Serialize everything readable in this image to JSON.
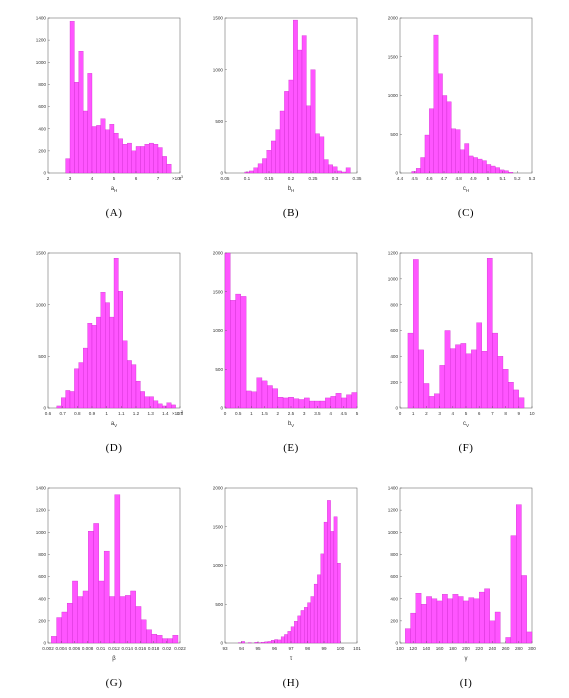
{
  "bar_color": "#ff55ff",
  "bar_edge_color": "#c21fc2",
  "chart_data": [
    {
      "type": "bar",
      "caption": "(A)",
      "xlabel": "a_H",
      "multiplier": "×10^-3",
      "xlim": [
        2,
        8
      ],
      "ylim": [
        0,
        1400
      ],
      "xticks": [
        "2",
        "3",
        "4",
        "5",
        "6",
        "7",
        "8"
      ],
      "yticks": [
        "0",
        "200",
        "400",
        "600",
        "800",
        "1000",
        "1200",
        "1400"
      ],
      "bin_edges": [
        2.8,
        3.0,
        3.2,
        3.4,
        3.6,
        3.8,
        4.0,
        4.2,
        4.4,
        4.6,
        4.8,
        5.0,
        5.2,
        5.4,
        5.6,
        5.8,
        6.0,
        6.2,
        6.4,
        6.6,
        6.8,
        7.0,
        7.2,
        7.4,
        7.6
      ],
      "values": [
        130,
        1370,
        820,
        1100,
        560,
        900,
        420,
        430,
        490,
        390,
        440,
        360,
        310,
        260,
        270,
        200,
        240,
        240,
        260,
        270,
        260,
        230,
        150,
        80
      ]
    },
    {
      "type": "bar",
      "caption": "(B)",
      "xlabel": "b_H",
      "xlim": [
        0.05,
        0.35
      ],
      "ylim": [
        0,
        1500
      ],
      "xticks": [
        "0.05",
        "0.1",
        "0.15",
        "0.2",
        "0.25",
        "0.3",
        "0.35"
      ],
      "yticks": [
        "0",
        "500",
        "1000",
        "1500"
      ],
      "bin_edges": [
        0.095,
        0.105,
        0.115,
        0.125,
        0.135,
        0.145,
        0.155,
        0.165,
        0.175,
        0.185,
        0.195,
        0.205,
        0.215,
        0.225,
        0.235,
        0.245,
        0.255,
        0.265,
        0.275,
        0.285,
        0.295,
        0.305,
        0.315,
        0.325,
        0.335
      ],
      "values": [
        10,
        20,
        50,
        90,
        140,
        220,
        310,
        420,
        600,
        790,
        900,
        1480,
        1190,
        1330,
        650,
        1000,
        380,
        350,
        130,
        80,
        60,
        20,
        10,
        50
      ]
    },
    {
      "type": "bar",
      "caption": "(C)",
      "xlabel": "c_H",
      "xlim": [
        4.4,
        5.3
      ],
      "ylim": [
        0,
        2000
      ],
      "xticks": [
        "4.4",
        "4.5",
        "4.6",
        "4.7",
        "4.8",
        "4.9",
        "5",
        "5.1",
        "5.2",
        "5.3"
      ],
      "yticks": [
        "0",
        "500",
        "1000",
        "1500",
        "2000"
      ],
      "bin_edges": [
        4.48,
        4.51,
        4.54,
        4.57,
        4.6,
        4.63,
        4.66,
        4.69,
        4.72,
        4.75,
        4.78,
        4.81,
        4.84,
        4.87,
        4.9,
        4.93,
        4.96,
        4.99,
        5.02,
        5.05,
        5.08,
        5.11,
        5.14,
        5.17
      ],
      "values": [
        20,
        60,
        200,
        490,
        830,
        1780,
        1280,
        1000,
        920,
        570,
        560,
        300,
        380,
        220,
        200,
        180,
        160,
        110,
        90,
        70,
        40,
        30,
        10
      ]
    },
    {
      "type": "bar",
      "caption": "(D)",
      "xlabel": "a_V",
      "multiplier": "×10^-3",
      "xlim": [
        0.6,
        1.5
      ],
      "ylim": [
        0,
        1500
      ],
      "xticks": [
        "0.6",
        "0.7",
        "0.8",
        "0.9",
        "1",
        "1.1",
        "1.2",
        "1.3",
        "1.4",
        "1.5"
      ],
      "yticks": [
        "0",
        "500",
        "1000",
        "1500"
      ],
      "bin_edges": [
        0.66,
        0.69,
        0.72,
        0.75,
        0.78,
        0.81,
        0.84,
        0.87,
        0.9,
        0.93,
        0.96,
        0.99,
        1.02,
        1.05,
        1.08,
        1.11,
        1.14,
        1.17,
        1.2,
        1.23,
        1.26,
        1.29,
        1.32,
        1.35,
        1.38,
        1.41,
        1.44,
        1.47
      ],
      "values": [
        20,
        100,
        170,
        160,
        380,
        440,
        580,
        820,
        800,
        880,
        1120,
        1020,
        880,
        1450,
        1130,
        650,
        460,
        420,
        260,
        160,
        110,
        110,
        70,
        40,
        20,
        50,
        30
      ]
    },
    {
      "type": "bar",
      "caption": "(E)",
      "xlabel": "b_V",
      "xlim": [
        0,
        5
      ],
      "ylim": [
        0,
        2000
      ],
      "xticks": [
        "0",
        "0.5",
        "1",
        "1.5",
        "2",
        "2.5",
        "3",
        "3.5",
        "4",
        "4.5",
        "5"
      ],
      "yticks": [
        "0",
        "500",
        "1000",
        "1500",
        "2000"
      ],
      "bin_edges": [
        0,
        0.2,
        0.4,
        0.6,
        0.8,
        1.0,
        1.2,
        1.4,
        1.6,
        1.8,
        2.0,
        2.2,
        2.4,
        2.6,
        2.8,
        3.0,
        3.2,
        3.4,
        3.6,
        3.8,
        4.0,
        4.2,
        4.4,
        4.6,
        4.8,
        5.0
      ],
      "values": [
        2050,
        1390,
        1470,
        1440,
        220,
        210,
        390,
        350,
        290,
        250,
        140,
        130,
        140,
        120,
        110,
        130,
        90,
        90,
        90,
        130,
        150,
        190,
        130,
        170,
        200
      ]
    },
    {
      "type": "bar",
      "caption": "(F)",
      "xlabel": "c_V",
      "xlim": [
        0,
        10
      ],
      "ylim": [
        0,
        1200
      ],
      "xticks": [
        "0",
        "1",
        "2",
        "3",
        "4",
        "5",
        "6",
        "7",
        "8",
        "9",
        "10"
      ],
      "yticks": [
        "0",
        "200",
        "400",
        "600",
        "800",
        "1000",
        "1200"
      ],
      "bin_edges": [
        0.6,
        1.0,
        1.4,
        1.8,
        2.2,
        2.6,
        3.0,
        3.4,
        3.8,
        4.2,
        4.6,
        5.0,
        5.4,
        5.8,
        6.2,
        6.6,
        7.0,
        7.4,
        7.8,
        8.2,
        8.6,
        9.0,
        9.4
      ],
      "values": [
        580,
        1150,
        450,
        190,
        90,
        110,
        330,
        600,
        460,
        490,
        500,
        420,
        450,
        660,
        440,
        1160,
        580,
        400,
        300,
        200,
        140,
        80
      ]
    },
    {
      "type": "bar",
      "caption": "(G)",
      "xlabel": "β",
      "xlim": [
        0.002,
        0.022
      ],
      "ylim": [
        0,
        1400
      ],
      "xticks": [
        "0.002",
        "0.004",
        "0.006",
        "0.008",
        "0.01",
        "0.012",
        "0.014",
        "0.016",
        "0.018",
        "0.02",
        "0.022"
      ],
      "yticks": [
        "0",
        "200",
        "400",
        "600",
        "800",
        "1000",
        "1200",
        "1400"
      ],
      "bin_edges": [
        0.0025,
        0.0033,
        0.0041,
        0.0049,
        0.0057,
        0.0065,
        0.0073,
        0.0081,
        0.0089,
        0.0097,
        0.0105,
        0.0113,
        0.0121,
        0.0129,
        0.0137,
        0.0145,
        0.0153,
        0.0161,
        0.0169,
        0.0177,
        0.0185,
        0.0193,
        0.0201,
        0.0209,
        0.0217
      ],
      "values": [
        60,
        230,
        280,
        360,
        560,
        420,
        470,
        1010,
        1080,
        560,
        830,
        420,
        1340,
        420,
        430,
        470,
        330,
        210,
        120,
        80,
        70,
        40,
        40,
        70
      ]
    },
    {
      "type": "bar",
      "caption": "(H)",
      "xlabel": "τ",
      "xlim": [
        93,
        101
      ],
      "ylim": [
        0,
        2000
      ],
      "xticks": [
        "93",
        "94",
        "95",
        "96",
        "97",
        "98",
        "99",
        "100",
        "101"
      ],
      "yticks": [
        "0",
        "500",
        "1000",
        "1500",
        "2000"
      ],
      "bin_edges": [
        93.8,
        94.0,
        94.2,
        94.4,
        94.6,
        94.8,
        95.0,
        95.2,
        95.4,
        95.6,
        95.8,
        96.0,
        96.2,
        96.4,
        96.6,
        96.8,
        97.0,
        97.2,
        97.4,
        97.6,
        97.8,
        98.0,
        98.2,
        98.4,
        98.6,
        98.8,
        99.0,
        99.2,
        99.4,
        99.6,
        99.8,
        100.0
      ],
      "values": [
        5,
        20,
        0,
        5,
        0,
        10,
        5,
        10,
        15,
        20,
        35,
        45,
        40,
        80,
        110,
        150,
        210,
        280,
        350,
        420,
        460,
        520,
        600,
        760,
        880,
        1150,
        1560,
        1840,
        1440,
        1630,
        1030
      ]
    },
    {
      "type": "bar",
      "caption": "(I)",
      "xlabel": "γ",
      "xlim": [
        100,
        300
      ],
      "ylim": [
        0,
        1400
      ],
      "xticks": [
        "100",
        "120",
        "140",
        "160",
        "180",
        "200",
        "220",
        "240",
        "260",
        "280",
        "300"
      ],
      "yticks": [
        "0",
        "200",
        "400",
        "600",
        "800",
        "1000",
        "1200",
        "1400"
      ],
      "bin_edges": [
        108,
        116,
        124,
        132,
        140,
        148,
        156,
        164,
        172,
        180,
        188,
        196,
        204,
        212,
        220,
        228,
        236,
        244,
        252,
        260,
        268,
        276,
        284,
        292,
        300
      ],
      "values": [
        130,
        270,
        450,
        350,
        420,
        400,
        380,
        440,
        400,
        440,
        420,
        380,
        410,
        400,
        460,
        490,
        200,
        280,
        0,
        50,
        970,
        1250,
        610,
        100
      ]
    }
  ]
}
